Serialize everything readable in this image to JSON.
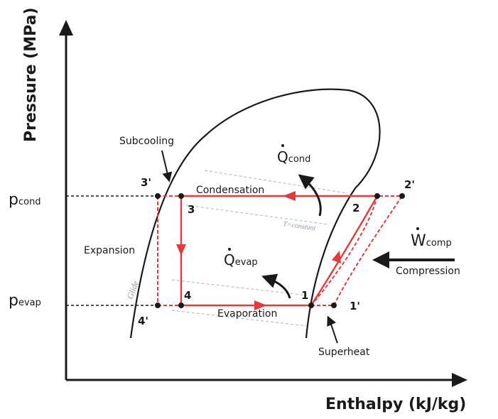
{
  "axes": {
    "y_title": "Pressure (MPa)",
    "x_title": "Enthalpy (kJ/kg)"
  },
  "pressure_levels": {
    "cond": {
      "main": "p",
      "sub": "cond"
    },
    "evap": {
      "main": "p",
      "sub": "evap"
    }
  },
  "labels": {
    "subcooling": "Subcooling",
    "condensation": "Condensation",
    "expansion": "Expansion",
    "evaporation": "Evaporation",
    "compression": "Compression",
    "superheat": "Superheat",
    "t_constant": "T=constant",
    "glide": "Glide"
  },
  "heat_work": {
    "q_cond": {
      "main": "Q",
      "sub": "cond"
    },
    "q_evap": {
      "main": "Q",
      "sub": "evap"
    },
    "w_comp": {
      "main": "W",
      "sub": "comp"
    }
  },
  "states": {
    "s1": "1",
    "s1p": "1'",
    "s2": "2",
    "s2p": "2'",
    "s3": "3",
    "s3p": "3'",
    "s4": "4",
    "s4p": "4'"
  },
  "colors": {
    "cycle": "#e23b3b",
    "axis": "#1a1a1a",
    "isotherm": "#b8c0c8",
    "text_muted": "#8a9aa8"
  }
}
